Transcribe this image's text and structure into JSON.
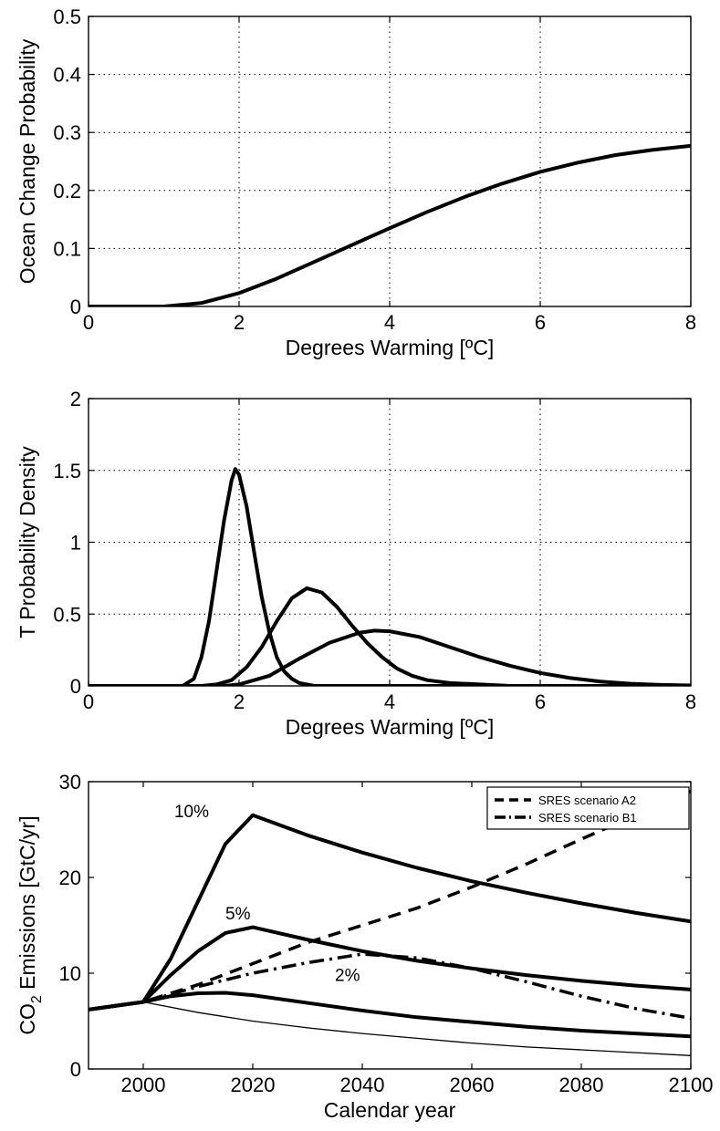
{
  "chart_data": [
    {
      "type": "line",
      "xlabel": "Degrees Warming [ºC]",
      "ylabel": "Ocean Change Probability",
      "xlim": [
        0,
        8
      ],
      "ylim": [
        0,
        0.5
      ],
      "xticks": [
        "0",
        "2",
        "4",
        "6",
        "8"
      ],
      "yticks": [
        "0",
        "0.1",
        "0.2",
        "0.3",
        "0.4",
        "0.5"
      ],
      "grid": true,
      "series": [
        {
          "x": [
            0,
            1,
            1.5,
            2,
            2.5,
            3,
            3.5,
            4,
            4.5,
            5,
            5.5,
            6,
            6.5,
            7,
            7.5,
            8
          ],
          "y": [
            0,
            0,
            0.006,
            0.023,
            0.048,
            0.077,
            0.106,
            0.135,
            0.163,
            0.189,
            0.212,
            0.232,
            0.248,
            0.261,
            0.27,
            0.277
          ]
        }
      ]
    },
    {
      "type": "line",
      "xlabel": "Degrees Warming [ºC]",
      "ylabel": "T Probability Density",
      "xlim": [
        0,
        8
      ],
      "ylim": [
        0,
        2
      ],
      "xticks": [
        "0",
        "2",
        "4",
        "6",
        "8"
      ],
      "yticks": [
        "0",
        "0.5",
        "1",
        "1.5",
        "2"
      ],
      "grid": true,
      "series": [
        {
          "x": [
            0,
            1.25,
            1.4,
            1.5,
            1.6,
            1.7,
            1.8,
            1.9,
            1.95,
            2.0,
            2.1,
            2.2,
            2.3,
            2.4,
            2.5,
            2.6,
            2.7,
            2.8,
            3.0,
            8
          ],
          "y": [
            0,
            0,
            0.05,
            0.2,
            0.45,
            0.8,
            1.15,
            1.43,
            1.51,
            1.47,
            1.25,
            0.93,
            0.62,
            0.38,
            0.2,
            0.1,
            0.05,
            0.02,
            0,
            0
          ]
        },
        {
          "x": [
            0,
            1.5,
            1.7,
            1.9,
            2.1,
            2.3,
            2.5,
            2.7,
            2.9,
            3.1,
            3.3,
            3.5,
            3.7,
            3.9,
            4.1,
            4.3,
            4.5,
            4.8,
            5.2,
            5.6,
            8
          ],
          "y": [
            0,
            0,
            0.01,
            0.04,
            0.13,
            0.27,
            0.45,
            0.61,
            0.68,
            0.65,
            0.55,
            0.42,
            0.3,
            0.2,
            0.12,
            0.07,
            0.04,
            0.02,
            0.01,
            0,
            0
          ]
        },
        {
          "x": [
            0,
            1.8,
            2.0,
            2.4,
            2.8,
            3.2,
            3.6,
            3.8,
            4.0,
            4.4,
            4.8,
            5.2,
            5.6,
            6.0,
            6.4,
            6.8,
            7.2,
            7.6,
            8.0
          ],
          "y": [
            0,
            0,
            0.01,
            0.07,
            0.19,
            0.3,
            0.37,
            0.385,
            0.38,
            0.34,
            0.27,
            0.2,
            0.14,
            0.09,
            0.055,
            0.03,
            0.015,
            0.007,
            0.003
          ]
        }
      ]
    },
    {
      "type": "line",
      "xlabel": "Calendar year",
      "ylabel_main": "CO",
      "ylabel_sub": "2",
      "ylabel_rest": " Emissions [GtC/yr]",
      "xlim": [
        1990,
        2100
      ],
      "ylim": [
        0,
        30
      ],
      "xticks": [
        "2000",
        "2020",
        "2040",
        "2060",
        "2080",
        "2100"
      ],
      "yticks": [
        "0",
        "10",
        "20",
        "30"
      ],
      "grid": false,
      "legend": {
        "position": "top-right",
        "entries": [
          "SRES scenario A2",
          "SRES scenario B1"
        ]
      },
      "annotations": [
        "10%",
        "5%",
        "2%"
      ],
      "series": [
        {
          "name": "SRES scenario A2",
          "style": "dashed",
          "x": [
            1990,
            2000,
            2010,
            2020,
            2030,
            2040,
            2050,
            2060,
            2070,
            2080,
            2090,
            2100
          ],
          "y": [
            6.2,
            7.0,
            8.8,
            11.0,
            13.2,
            15.0,
            16.8,
            19.0,
            21.4,
            24.0,
            26.5,
            29.0
          ]
        },
        {
          "name": "SRES scenario B1",
          "style": "dashdot",
          "x": [
            1990,
            2000,
            2010,
            2020,
            2030,
            2040,
            2050,
            2060,
            2070,
            2080,
            2090,
            2100
          ],
          "y": [
            6.2,
            7.0,
            8.6,
            10.0,
            11.1,
            12.0,
            11.6,
            10.5,
            9.1,
            7.6,
            6.3,
            5.3
          ]
        },
        {
          "x": [
            1990,
            2000,
            2005,
            2010,
            2015,
            2020,
            2030,
            2040,
            2050,
            2060,
            2070,
            2080,
            2090,
            2100
          ],
          "y": [
            6.2,
            7.0,
            11.5,
            17.5,
            23.5,
            26.5,
            24.4,
            22.6,
            21.0,
            19.6,
            18.4,
            17.3,
            16.3,
            15.4
          ]
        },
        {
          "x": [
            1990,
            2000,
            2005,
            2010,
            2015,
            2020,
            2030,
            2040,
            2050,
            2060,
            2070,
            2080,
            2090,
            2100
          ],
          "y": [
            6.2,
            7.0,
            9.8,
            12.3,
            14.2,
            14.8,
            13.5,
            12.3,
            11.3,
            10.5,
            9.8,
            9.2,
            8.7,
            8.3
          ]
        },
        {
          "x": [
            1990,
            2000,
            2005,
            2010,
            2015,
            2020,
            2030,
            2040,
            2050,
            2060,
            2070,
            2080,
            2090,
            2100
          ],
          "y": [
            6.2,
            7.0,
            7.6,
            7.9,
            7.95,
            7.7,
            6.9,
            6.1,
            5.4,
            4.9,
            4.4,
            4.0,
            3.7,
            3.4
          ]
        },
        {
          "style": "thin",
          "x": [
            1990,
            2000,
            2010,
            2020,
            2030,
            2040,
            2050,
            2060,
            2070,
            2080,
            2090,
            2100
          ],
          "y": [
            6.2,
            7.0,
            5.9,
            5.0,
            4.3,
            3.7,
            3.2,
            2.7,
            2.3,
            2.0,
            1.7,
            1.4
          ]
        }
      ]
    }
  ]
}
